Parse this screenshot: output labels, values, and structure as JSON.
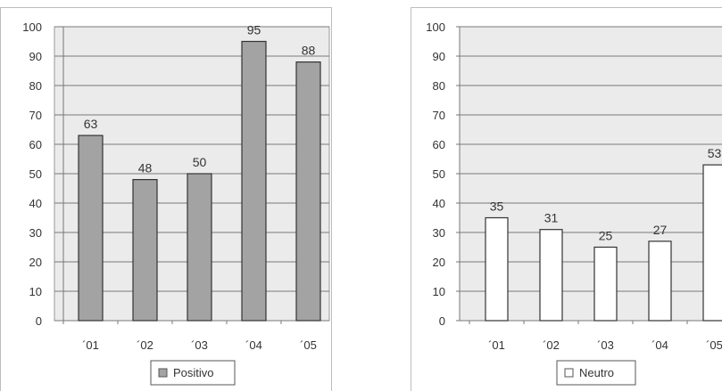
{
  "chart_data": [
    {
      "type": "bar",
      "categories": [
        "´01",
        "´02",
        "´03",
        "´04",
        "´05"
      ],
      "series": [
        {
          "name": "Positivo",
          "values": [
            63,
            48,
            50,
            95,
            88
          ]
        }
      ],
      "data_labels": [
        "63",
        "48",
        "50",
        "95",
        "88"
      ],
      "ylim": [
        0,
        100
      ],
      "yticks": [
        0,
        10,
        20,
        30,
        40,
        50,
        60,
        70,
        80,
        90,
        100
      ],
      "grid": true,
      "legend": "bottom",
      "bar_color": "#a3a3a3",
      "title": "",
      "xlabel": "",
      "ylabel": ""
    },
    {
      "type": "bar",
      "categories": [
        "´01",
        "´02",
        "´03",
        "´04",
        "´05"
      ],
      "series": [
        {
          "name": "Neutro",
          "values": [
            35,
            31,
            25,
            27,
            53
          ]
        }
      ],
      "data_labels": [
        "35",
        "31",
        "25",
        "27",
        "53"
      ],
      "ylim": [
        0,
        100
      ],
      "yticks": [
        0,
        10,
        20,
        30,
        40,
        50,
        60,
        70,
        80,
        90,
        100
      ],
      "grid": true,
      "legend": "bottom",
      "bar_color": "#ffffff",
      "title": "",
      "xlabel": "",
      "ylabel": ""
    }
  ]
}
